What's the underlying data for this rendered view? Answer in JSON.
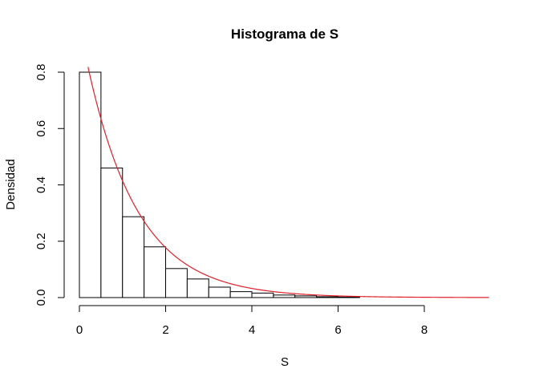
{
  "chart_data": {
    "type": "bar",
    "title": "Histograma de S",
    "xlabel": "S",
    "ylabel": "Densidad",
    "xlim": [
      0,
      9.5
    ],
    "ylim": [
      0,
      0.8
    ],
    "x_ticks": [
      "0",
      "2",
      "4",
      "6",
      "8"
    ],
    "x_tick_values": [
      0,
      2,
      4,
      6,
      8
    ],
    "y_ticks": [
      "0.0",
      "0.2",
      "0.4",
      "0.6",
      "0.8"
    ],
    "y_tick_values": [
      0,
      0.2,
      0.4,
      0.6,
      0.8
    ],
    "bin_width": 0.5,
    "bin_starts": [
      0,
      0.5,
      1.0,
      1.5,
      2.0,
      2.5,
      3.0,
      3.5,
      4.0,
      4.5,
      5.0,
      5.5,
      6.0
    ],
    "values": [
      0.8,
      0.46,
      0.287,
      0.18,
      0.103,
      0.066,
      0.037,
      0.021,
      0.016,
      0.009,
      0.006,
      0.003,
      0.002
    ],
    "grid": false,
    "curve": {
      "type": "line",
      "color": "#e0202a",
      "function": "0.97 * exp(-0.85 * x)",
      "x_range": [
        0.2,
        9.5
      ]
    },
    "bar_fill": "#ffffff",
    "bar_stroke": "#000000"
  }
}
